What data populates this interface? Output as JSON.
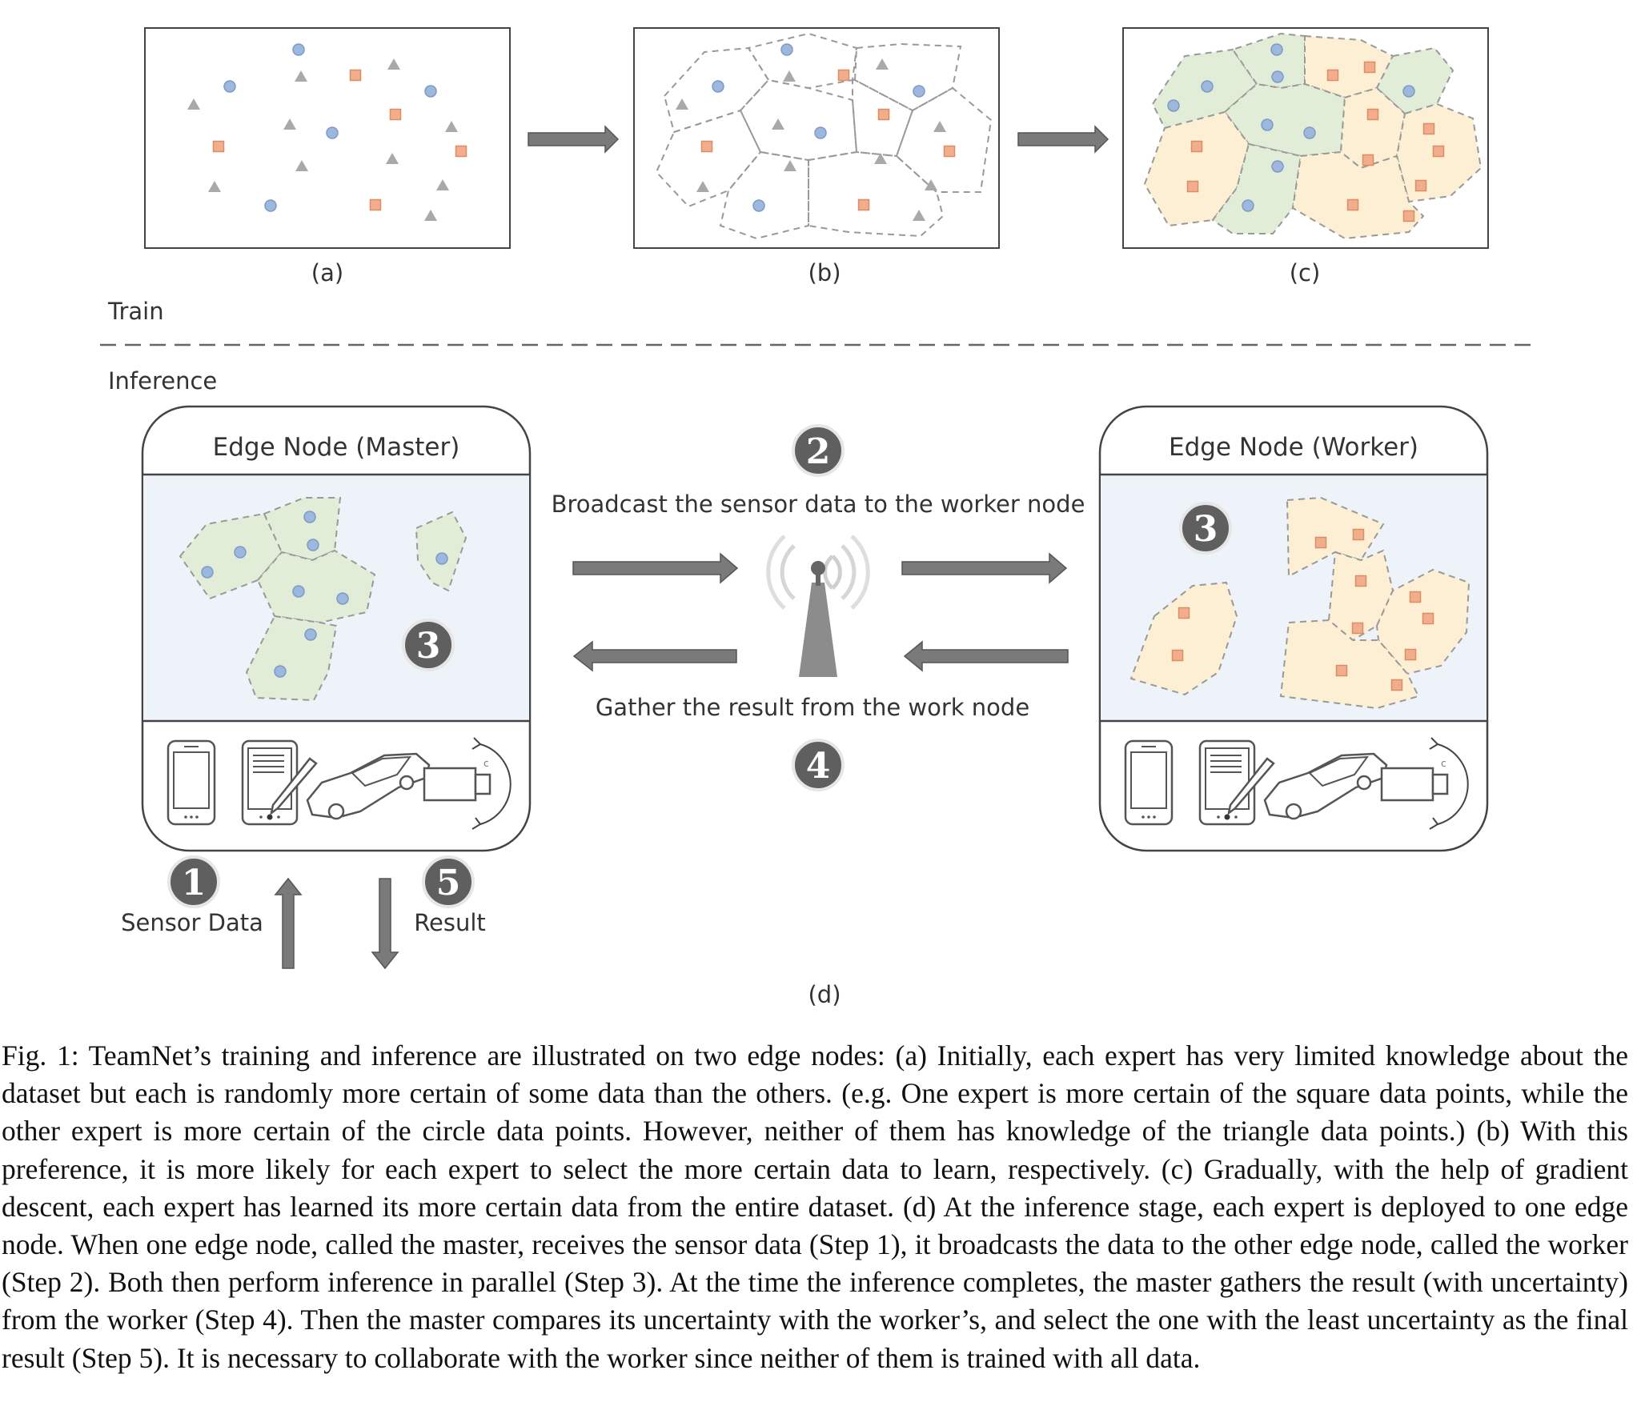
{
  "panels": {
    "a_label": "(a)",
    "b_label": "(b)",
    "c_label": "(c)",
    "d_label": "(d)"
  },
  "sections": {
    "train": "Train",
    "inference": "Inference"
  },
  "nodes": {
    "master_title": "Edge Node (Master)",
    "worker_title": "Edge Node (Worker)"
  },
  "steps": {
    "one": "1",
    "two": "2",
    "three_master": "3",
    "three_worker": "3",
    "four": "4",
    "five": "5"
  },
  "labels": {
    "broadcast": "Broadcast the sensor data to the worker node",
    "gather": "Gather the result from the work node",
    "sensor_data": "Sensor Data",
    "result": "Result"
  },
  "colors": {
    "circle_fill": "#9db8df",
    "square_fill": "#f2ae8c",
    "triangle_fill": "#a9a9a9",
    "region_green": "#e2edd8",
    "region_yellow": "#fcefd4",
    "node_panel": "#eef3f9",
    "arrow": "#7a7a7a",
    "step_badge": "#5f5f5f"
  },
  "caption": "Fig. 1: TeamNet’s training and inference are illustrated on two edge nodes: (a) Initially, each expert has very limited knowledge about the dataset but each is randomly more certain of some data than the others. (e.g. One expert is more certain of the square data points, while the other expert is more certain of the circle data points. However, neither of them has knowledge of the triangle data points.) (b) With this preference, it is more likely for each expert to select the more certain data to learn, respectively. (c) Gradually, with the help of gradient descent, each expert has learned its more certain data from the entire dataset. (d) At the inference stage, each expert is deployed to one edge node. When one edge node, called the master, receives the sensor data (Step 1), it broadcasts the data to the other edge node, called the worker (Step 2). Both then perform inference in parallel (Step 3). At the time the inference completes, the master gathers the result (with uncertainty) from the worker (Step 4). Then the master compares its uncertainty with the worker’s, and select the one with the least uncertainty as the final result (Step 5). It is necessary to collaborate with the worker since neither of them is trained with all data."
}
